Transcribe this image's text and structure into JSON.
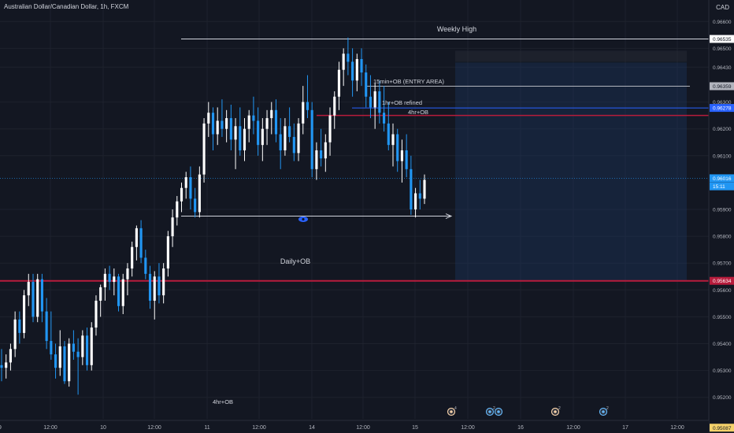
{
  "header": {
    "title": "Australian Dollar/Canadian Dollar, 1h, FXCM",
    "currency": "CAD"
  },
  "chart_data": {
    "type": "candlestick",
    "title": "Australian Dollar/Canadian Dollar, 1h, FXCM",
    "ylim": [
      0.9512,
      0.9668
    ],
    "y_ticks": [
      "0.96600",
      "0.96500",
      "0.96430",
      "0.96300",
      "0.96200",
      "0.96100",
      "0.95900",
      "0.95800",
      "0.95700",
      "0.95600",
      "0.95500",
      "0.95400",
      "0.95300",
      "0.95200"
    ],
    "x_ticks": [
      "12:00",
      "10",
      "12:00",
      "11",
      "12:00",
      "14",
      "12:00",
      "15",
      "12:00",
      "16",
      "12:00",
      "17",
      "12:00"
    ],
    "price_labels": [
      {
        "text": "0.96535",
        "value": 0.96535,
        "color": "#ffffff",
        "text_color": "#131722"
      },
      {
        "text": "0.96359",
        "value": 0.96359,
        "color": "#b2b5be",
        "text_color": "#131722"
      },
      {
        "text": "0.96278",
        "value": 0.96278,
        "color": "#2962ff",
        "text_color": "#ffffff"
      },
      {
        "text": "0.96016",
        "value": 0.96016,
        "color": "#2196f3",
        "text_color": "#ffffff"
      },
      {
        "text": "15:11",
        "value": 0.95986,
        "color": "#2196f3",
        "text_color": "#ffffff"
      },
      {
        "text": "0.95634",
        "value": 0.95634,
        "color": "#b71c3c",
        "text_color": "#ffffff"
      },
      {
        "text": "0.95087",
        "value": 0.95087,
        "color": "#f5d26b",
        "text_color": "#131722"
      }
    ],
    "annotations": [
      {
        "text": "Weekly High",
        "value": 0.96535
      },
      {
        "text": "15min+OB (ENTRY AREA)",
        "value": 0.96359
      },
      {
        "text": "1hr+OB refined",
        "value": 0.96278
      },
      {
        "text": "4hr+OB",
        "value": 0.9625
      },
      {
        "text": "Daily+OB",
        "value": 0.95634
      },
      {
        "text": "4hr+OB",
        "value": 0.95087
      }
    ],
    "levels": {
      "weekly_high": 0.96535,
      "entry_15min_ob": 0.96359,
      "refined_1hr_ob": 0.96278,
      "h4_ob": 0.9625,
      "last_price": 0.96016,
      "daily_ob": 0.95634,
      "h4_ob_low": 0.95087,
      "arrow_level": 0.95875,
      "position_top": 0.9645,
      "position_bottom": 0.95634
    },
    "event_markers": [
      "4",
      "2",
      "",
      "2",
      "2"
    ],
    "colors": {
      "background": "#131722",
      "bull": "#ffffff",
      "bear": "#2196f3",
      "grid": "#1e222d",
      "daily_ob": "#b71c3c",
      "h4_ob": "#b71c3c",
      "refined": "#2962ff",
      "position_zone": "#1e3a66"
    },
    "candles": [
      [
        0.9532,
        0.9538,
        0.9526,
        0.9531
      ],
      [
        0.9531,
        0.9536,
        0.9527,
        0.9533
      ],
      [
        0.9533,
        0.954,
        0.953,
        0.9538
      ],
      [
        0.9538,
        0.9552,
        0.9535,
        0.9549
      ],
      [
        0.9549,
        0.9552,
        0.954,
        0.9544
      ],
      [
        0.9544,
        0.956,
        0.9542,
        0.9558
      ],
      [
        0.9558,
        0.9566,
        0.9554,
        0.9563
      ],
      [
        0.9563,
        0.9566,
        0.9548,
        0.955
      ],
      [
        0.955,
        0.9566,
        0.9548,
        0.9564
      ],
      [
        0.9564,
        0.9566,
        0.9548,
        0.9552
      ],
      [
        0.9552,
        0.9557,
        0.9538,
        0.9541
      ],
      [
        0.9541,
        0.9552,
        0.9534,
        0.9536
      ],
      [
        0.9536,
        0.954,
        0.9527,
        0.9531
      ],
      [
        0.9531,
        0.9545,
        0.9528,
        0.9539
      ],
      [
        0.9539,
        0.9541,
        0.9525,
        0.9526
      ],
      [
        0.9526,
        0.9542,
        0.9524,
        0.954
      ],
      [
        0.954,
        0.9545,
        0.9534,
        0.9537
      ],
      [
        0.9537,
        0.9542,
        0.9521,
        0.9535
      ],
      [
        0.9535,
        0.9545,
        0.9532,
        0.9543
      ],
      [
        0.9543,
        0.9546,
        0.953,
        0.9532
      ],
      [
        0.9532,
        0.9548,
        0.953,
        0.9546
      ],
      [
        0.9546,
        0.9558,
        0.9543,
        0.9556
      ],
      [
        0.9556,
        0.9562,
        0.955,
        0.9561
      ],
      [
        0.9561,
        0.9568,
        0.9556,
        0.9566
      ],
      [
        0.9566,
        0.9569,
        0.956,
        0.9563
      ],
      [
        0.9563,
        0.9568,
        0.9558,
        0.9565
      ],
      [
        0.9565,
        0.9566,
        0.9552,
        0.9554
      ],
      [
        0.9554,
        0.9566,
        0.9551,
        0.9564
      ],
      [
        0.9564,
        0.957,
        0.9558,
        0.9568
      ],
      [
        0.9568,
        0.9578,
        0.9565,
        0.9576
      ],
      [
        0.9576,
        0.9584,
        0.9571,
        0.9583
      ],
      [
        0.9583,
        0.9586,
        0.957,
        0.9572
      ],
      [
        0.9572,
        0.9575,
        0.9564,
        0.9566
      ],
      [
        0.9566,
        0.9569,
        0.9553,
        0.9556
      ],
      [
        0.9556,
        0.9567,
        0.9549,
        0.9565
      ],
      [
        0.9565,
        0.957,
        0.9555,
        0.9558
      ],
      [
        0.9558,
        0.957,
        0.9555,
        0.9568
      ],
      [
        0.9568,
        0.9582,
        0.9565,
        0.958
      ],
      [
        0.958,
        0.959,
        0.9576,
        0.9587
      ],
      [
        0.9587,
        0.9595,
        0.9584,
        0.9593
      ],
      [
        0.9593,
        0.96,
        0.9589,
        0.9598
      ],
      [
        0.9598,
        0.9604,
        0.9594,
        0.9602
      ],
      [
        0.9602,
        0.9606,
        0.959,
        0.9594
      ],
      [
        0.9594,
        0.9598,
        0.9587,
        0.9589
      ],
      [
        0.9589,
        0.9606,
        0.9587,
        0.9603
      ],
      [
        0.9603,
        0.9624,
        0.96,
        0.9622
      ],
      [
        0.9622,
        0.963,
        0.9617,
        0.9626
      ],
      [
        0.9626,
        0.9628,
        0.9612,
        0.9618
      ],
      [
        0.9618,
        0.9628,
        0.9614,
        0.9623
      ],
      [
        0.9623,
        0.9631,
        0.9617,
        0.962
      ],
      [
        0.962,
        0.9627,
        0.9615,
        0.9624
      ],
      [
        0.9624,
        0.9629,
        0.9612,
        0.9616
      ],
      [
        0.9616,
        0.9624,
        0.9605,
        0.9621
      ],
      [
        0.9621,
        0.9628,
        0.961,
        0.9612
      ],
      [
        0.9612,
        0.9624,
        0.9608,
        0.962
      ],
      [
        0.962,
        0.9627,
        0.9615,
        0.9625
      ],
      [
        0.9625,
        0.9632,
        0.9618,
        0.9623
      ],
      [
        0.9623,
        0.9628,
        0.961,
        0.9614
      ],
      [
        0.9614,
        0.9624,
        0.9608,
        0.962
      ],
      [
        0.962,
        0.9627,
        0.9614,
        0.9624
      ],
      [
        0.9624,
        0.963,
        0.9618,
        0.9627
      ],
      [
        0.9627,
        0.9631,
        0.9615,
        0.9618
      ],
      [
        0.9618,
        0.9624,
        0.9605,
        0.9612
      ],
      [
        0.9612,
        0.9624,
        0.961,
        0.9621
      ],
      [
        0.9621,
        0.9628,
        0.9615,
        0.9617
      ],
      [
        0.9617,
        0.9622,
        0.9608,
        0.9611
      ],
      [
        0.9611,
        0.9624,
        0.9608,
        0.9622
      ],
      [
        0.9622,
        0.9636,
        0.9618,
        0.963
      ],
      [
        0.963,
        0.964,
        0.9624,
        0.9627
      ],
      [
        0.9627,
        0.963,
        0.9602,
        0.9605
      ],
      [
        0.9605,
        0.9615,
        0.9601,
        0.9612
      ],
      [
        0.9612,
        0.962,
        0.9606,
        0.9609
      ],
      [
        0.9609,
        0.9618,
        0.9604,
        0.9615
      ],
      [
        0.9615,
        0.9628,
        0.961,
        0.9625
      ],
      [
        0.9625,
        0.9634,
        0.962,
        0.9632
      ],
      [
        0.9632,
        0.9645,
        0.9627,
        0.9642
      ],
      [
        0.9642,
        0.965,
        0.9636,
        0.9648
      ],
      [
        0.9648,
        0.9654,
        0.964,
        0.9645
      ],
      [
        0.9645,
        0.965,
        0.9632,
        0.9638
      ],
      [
        0.9638,
        0.9648,
        0.9634,
        0.9646
      ],
      [
        0.9646,
        0.965,
        0.9636,
        0.9641
      ],
      [
        0.9641,
        0.9644,
        0.9628,
        0.9632
      ],
      [
        0.9632,
        0.964,
        0.9624,
        0.9628
      ],
      [
        0.9628,
        0.9637,
        0.962,
        0.9634
      ],
      [
        0.9634,
        0.9638,
        0.9622,
        0.9626
      ],
      [
        0.9626,
        0.9636,
        0.9619,
        0.9622
      ],
      [
        0.9622,
        0.963,
        0.9612,
        0.9614
      ],
      [
        0.9614,
        0.9622,
        0.9606,
        0.9618
      ],
      [
        0.9618,
        0.962,
        0.9604,
        0.9608
      ],
      [
        0.9608,
        0.9616,
        0.96,
        0.9612
      ],
      [
        0.9612,
        0.9618,
        0.9602,
        0.9605
      ],
      [
        0.9605,
        0.961,
        0.9588,
        0.959
      ],
      [
        0.959,
        0.9598,
        0.9587,
        0.9596
      ],
      [
        0.9596,
        0.9601,
        0.959,
        0.9594
      ],
      [
        0.9594,
        0.9603,
        0.9592,
        0.9601
      ]
    ]
  }
}
